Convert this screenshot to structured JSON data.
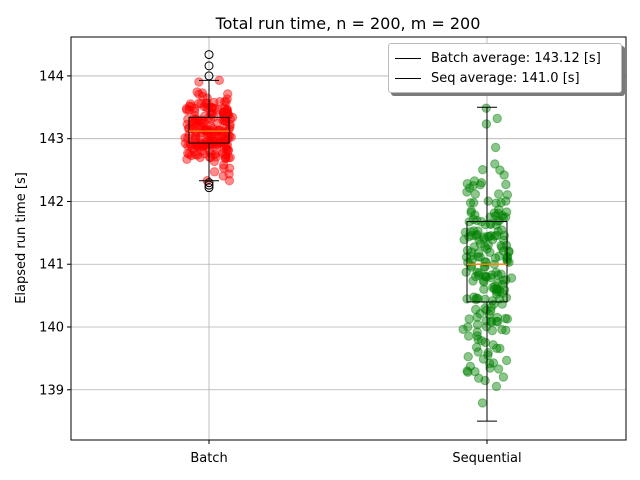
{
  "chart_data": {
    "type": "box",
    "title": "Total run time, n = 200, m = 200",
    "xlabel": "",
    "ylabel": "Elapsed run time [s]",
    "categories": [
      "Batch",
      "Sequential"
    ],
    "ylim": [
      138.2,
      144.62
    ],
    "yticks": [
      139,
      140,
      141,
      142,
      143,
      144
    ],
    "grid": true,
    "legend": {
      "placement": "top-right",
      "entries": [
        "Batch average: 143.12 [s]",
        "Seq average: 141.0 [s]"
      ]
    },
    "boxes": [
      {
        "name": "Batch",
        "q1": 142.93,
        "median": 143.12,
        "q3": 143.34,
        "whisker_low": 142.33,
        "whisker_high": 143.93,
        "fliers": [
          142.22,
          142.26,
          142.3,
          144.0,
          144.16,
          144.34
        ],
        "jitter_color": "#ff0000",
        "jitter_count": 200
      },
      {
        "name": "Sequential",
        "q1": 140.4,
        "median": 141.0,
        "q3": 141.68,
        "whisker_low": 138.5,
        "whisker_high": 143.5,
        "fliers": [],
        "jitter_color": "#008000",
        "jitter_count": 200
      }
    ],
    "colors": {
      "median": "#ff7f0e",
      "grid": "#b0b0b0"
    }
  }
}
